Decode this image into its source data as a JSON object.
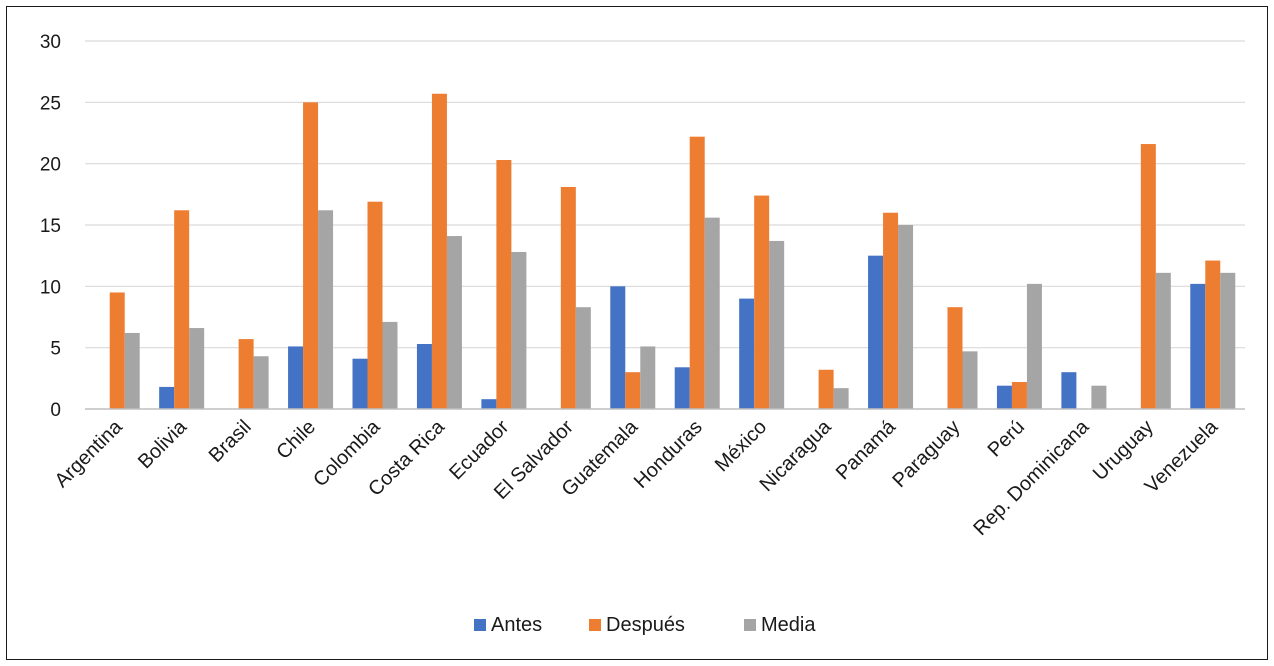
{
  "chart_data": {
    "type": "bar",
    "title": "",
    "xlabel": "",
    "ylabel": "",
    "ylim": [
      0,
      30
    ],
    "yticks": [
      0,
      5,
      10,
      15,
      20,
      25,
      30
    ],
    "grid": true,
    "legend_position": "bottom",
    "categories": [
      "Argentina",
      "Bolivia",
      "Brasil",
      "Chile",
      "Colombia",
      "Costa Rica",
      "Ecuador",
      "El Salvador",
      "Guatemala",
      "Honduras",
      "México",
      "Nicaragua",
      "Panamá",
      "Paraguay",
      "Perú",
      "Rep. Dominicana",
      "Uruguay",
      "Venezuela"
    ],
    "series": [
      {
        "name": "Antes",
        "color": "#4472C4",
        "values": [
          0,
          1.8,
          0,
          5.1,
          4.1,
          5.3,
          0.8,
          0,
          10.0,
          3.4,
          9.0,
          0,
          12.5,
          0,
          1.9,
          3.0,
          0,
          10.2
        ]
      },
      {
        "name": "Después",
        "color": "#ED7D31",
        "values": [
          9.5,
          16.2,
          5.7,
          25.0,
          16.9,
          25.7,
          20.3,
          18.1,
          3.0,
          22.2,
          17.4,
          3.2,
          16.0,
          8.3,
          2.2,
          0,
          21.6,
          12.1
        ]
      },
      {
        "name": "Media",
        "color": "#A5A5A5",
        "values": [
          6.2,
          6.6,
          4.3,
          16.2,
          7.1,
          14.1,
          12.8,
          8.3,
          5.1,
          15.6,
          13.7,
          1.7,
          15.0,
          4.7,
          10.2,
          1.9,
          11.1,
          11.1
        ]
      }
    ]
  }
}
